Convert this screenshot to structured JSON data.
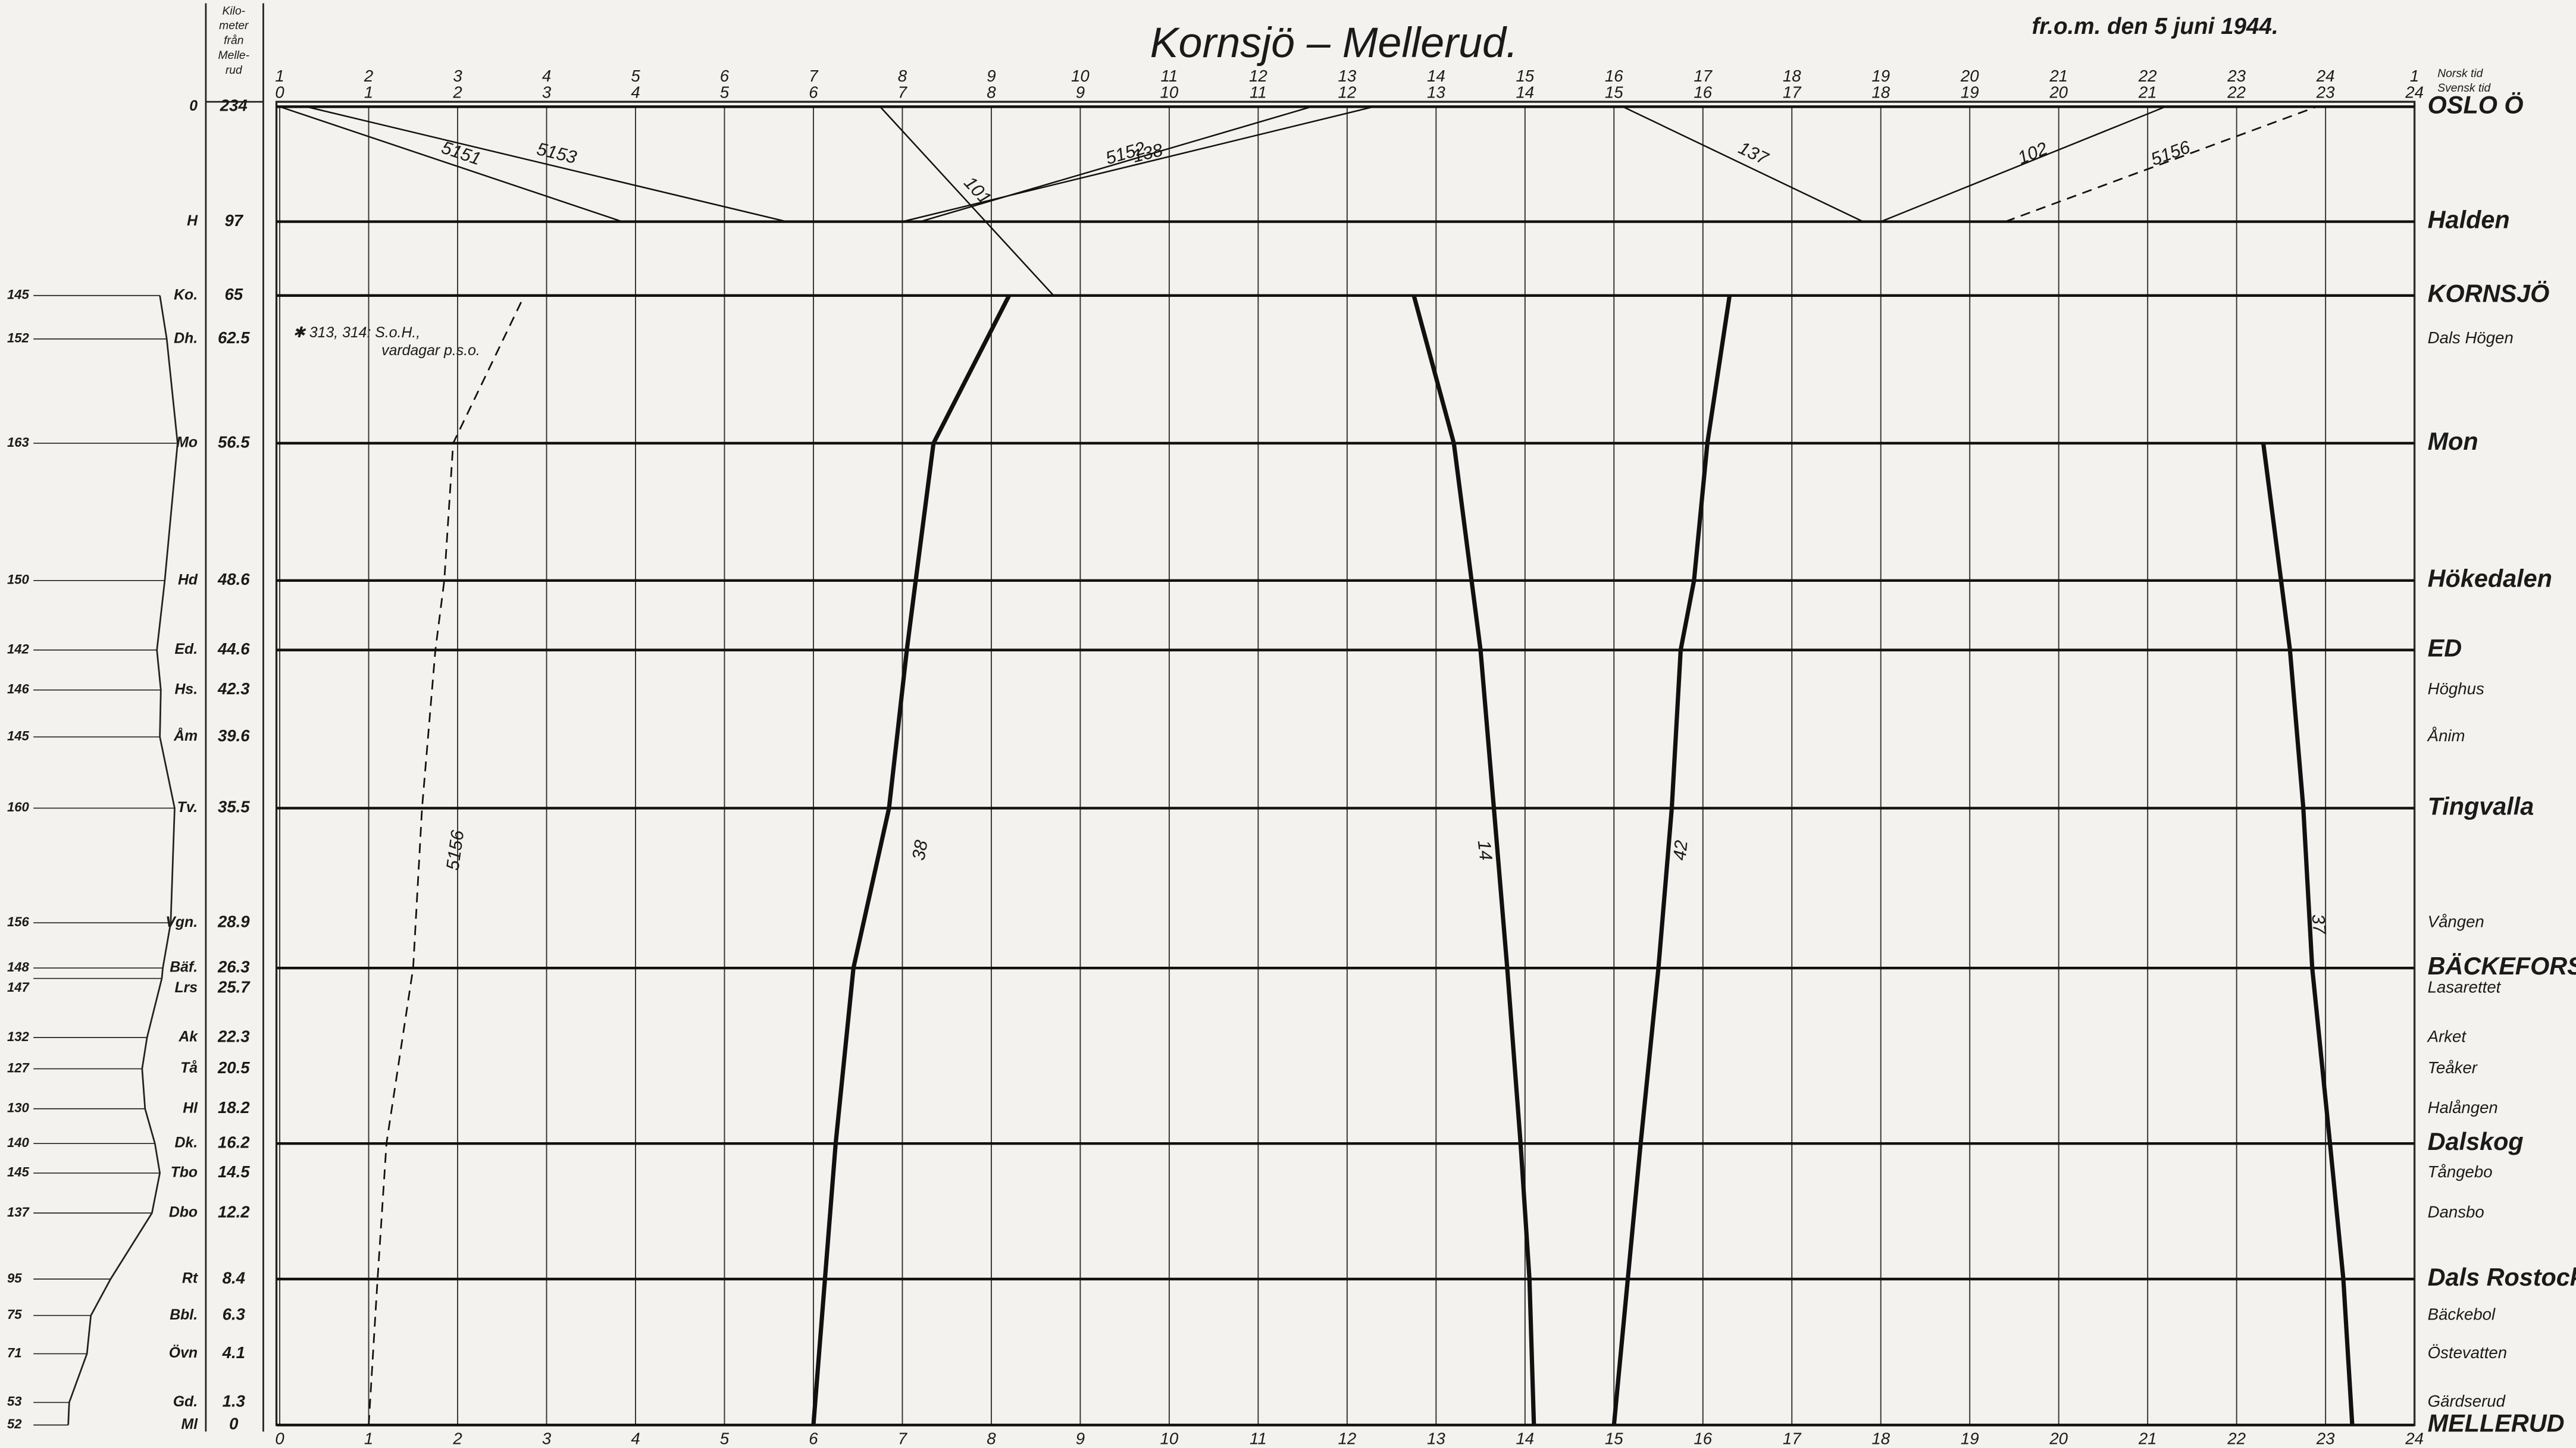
{
  "header": {
    "title": "Kornsjö – Mellerud.",
    "valid_from": "fr.o.m. den 5 juni 1944.",
    "km_column_heading": [
      "Kilo-",
      "meter",
      "från",
      "Melle-",
      "rud"
    ],
    "norsk_label": "Norsk tid",
    "svensk_label": "Svensk tid"
  },
  "note": [
    "✱ 313, 314: S.o.H.,",
    "vardagar p.s.o."
  ],
  "norsk_hours": [
    1,
    2,
    3,
    4,
    5,
    6,
    7,
    8,
    9,
    10,
    11,
    12,
    13,
    14,
    15,
    16,
    17,
    18,
    19,
    20,
    21,
    22,
    23,
    24,
    1
  ],
  "svensk_hours": [
    0,
    1,
    2,
    3,
    4,
    5,
    6,
    7,
    8,
    9,
    10,
    11,
    12,
    13,
    14,
    15,
    16,
    17,
    18,
    19,
    20,
    21,
    22,
    23,
    24
  ],
  "bottom_hours": [
    0,
    1,
    2,
    3,
    4,
    5,
    6,
    7,
    8,
    9,
    10,
    11,
    12,
    13,
    14,
    15,
    16,
    17,
    18,
    19,
    20,
    21,
    22,
    23,
    24
  ],
  "stations": [
    {
      "name": "OSLO Ö",
      "abbr": "0",
      "km": 234,
      "major": true
    },
    {
      "name": "Halden",
      "abbr": "H",
      "km": 97,
      "major": true
    },
    {
      "name": "KORNSJÖ",
      "abbr": "Ko.",
      "km": 65,
      "elevation": 145,
      "major": true
    },
    {
      "name": "Dals Högen",
      "abbr": "Dh.",
      "km": 62.5,
      "elevation": 152,
      "major": false
    },
    {
      "name": "Mon",
      "abbr": "Mo",
      "km": 56.5,
      "elevation": 163,
      "major": true
    },
    {
      "name": "Hökedalen",
      "abbr": "Hd",
      "km": 48.6,
      "elevation": 150,
      "major": true
    },
    {
      "name": "ED",
      "abbr": "Ed.",
      "km": 44.6,
      "elevation": 142,
      "major": true
    },
    {
      "name": "Höghus",
      "abbr": "Hs.",
      "km": 42.3,
      "elevation": 146,
      "major": false
    },
    {
      "name": "Ånim",
      "abbr": "Åm",
      "km": 39.6,
      "elevation": 145,
      "major": false
    },
    {
      "name": "Tingvalla",
      "abbr": "Tv.",
      "km": 35.5,
      "elevation": 160,
      "major": true
    },
    {
      "name": "Vången",
      "abbr": "Vgn.",
      "km": 28.9,
      "elevation": 156,
      "major": false
    },
    {
      "name": "BÄCKEFORS",
      "abbr": "Bäf.",
      "km": 26.3,
      "elevation": 148,
      "major": true
    },
    {
      "name": "Lasarettet",
      "abbr": "Lrs",
      "km": 25.7,
      "elevation": 147,
      "major": false
    },
    {
      "name": "Arket",
      "abbr": "Ak",
      "km": 22.3,
      "elevation": 132,
      "major": false
    },
    {
      "name": "Teåker",
      "abbr": "Tå",
      "km": 20.5,
      "elevation": 127,
      "major": false
    },
    {
      "name": "Halången",
      "abbr": "Hl",
      "km": 18.2,
      "elevation": 130,
      "major": false
    },
    {
      "name": "Dalskog",
      "abbr": "Dk.",
      "km": 16.2,
      "elevation": 140,
      "major": true
    },
    {
      "name": "Tångebo",
      "abbr": "Tbo",
      "km": 14.5,
      "elevation": 145,
      "major": false
    },
    {
      "name": "Dansbo",
      "abbr": "Dbo",
      "km": 12.2,
      "elevation": 137,
      "major": false
    },
    {
      "name": "Dals Rostock",
      "abbr": "Rt",
      "km": 8.4,
      "elevation": 95,
      "major": true
    },
    {
      "name": "Bäckebol",
      "abbr": "Bbl.",
      "km": 6.3,
      "elevation": 75,
      "major": false
    },
    {
      "name": "Östevatten",
      "abbr": "Övn",
      "km": 4.1,
      "elevation": 71,
      "major": false
    },
    {
      "name": "Gärdserud",
      "abbr": "Gd.",
      "km": 1.3,
      "elevation": 53,
      "major": false
    },
    {
      "name": "MELLERUD",
      "abbr": "Ml",
      "km": 0,
      "elevation": 52,
      "major": true
    }
  ],
  "trains": [
    {
      "number": "5151",
      "style": "thin",
      "stops": [
        {
          "station": "OSLO Ö",
          "time": 0.0
        },
        {
          "station": "Halden",
          "time": 3.85
        }
      ]
    },
    {
      "number": "5153",
      "style": "thin",
      "stops": [
        {
          "station": "OSLO Ö",
          "time": 0.3
        },
        {
          "station": "Halden",
          "time": 5.7
        }
      ]
    },
    {
      "number": "5152",
      "style": "thin",
      "stops": [
        {
          "station": "Halden",
          "time": 7.2
        },
        {
          "station": "OSLO Ö",
          "time": 11.6
        }
      ]
    },
    {
      "number": "138",
      "style": "thin",
      "stops": [
        {
          "station": "Halden",
          "time": 7.0
        },
        {
          "station": "OSLO Ö",
          "time": 12.3
        }
      ]
    },
    {
      "number": "101",
      "style": "thin",
      "stops": [
        {
          "station": "OSLO Ö",
          "time": 6.75
        },
        {
          "station": "KORNSJÖ",
          "time": 8.7
        }
      ]
    },
    {
      "number": "137",
      "style": "thin",
      "stops": [
        {
          "station": "OSLO Ö",
          "time": 15.1
        },
        {
          "station": "Halden",
          "time": 17.8
        }
      ]
    },
    {
      "number": "102",
      "style": "thin",
      "stops": [
        {
          "station": "Halden",
          "time": 18.0
        },
        {
          "station": "OSLO Ö",
          "time": 21.2
        }
      ]
    },
    {
      "number": "5156",
      "style": "dashed",
      "stops": [
        {
          "station": "Halden",
          "time": 19.4
        },
        {
          "station": "OSLO Ö",
          "time": 22.9
        }
      ]
    },
    {
      "number": "5156",
      "style": "dashed",
      "stops": [
        {
          "station": "MELLERUD",
          "time": 1.0
        },
        {
          "station": "Dals Rostock",
          "time": 1.1
        },
        {
          "station": "Dalskog",
          "time": 1.2
        },
        {
          "station": "BÄCKEFORS",
          "time": 1.5
        },
        {
          "station": "Tingvalla",
          "time": 1.6
        },
        {
          "station": "ED",
          "time": 1.75
        },
        {
          "station": "Hökedalen",
          "time": 1.85
        },
        {
          "station": "Mon",
          "time": 1.95
        },
        {
          "station": "KORNSJÖ",
          "time": 2.75
        }
      ]
    },
    {
      "number": "38",
      "style": "thick",
      "stops": [
        {
          "station": "MELLERUD",
          "time": 6.0
        },
        {
          "station": "Dalskog",
          "time": 6.25
        },
        {
          "station": "BÄCKEFORS",
          "time": 6.45
        },
        {
          "station": "Tingvalla",
          "time": 6.85
        },
        {
          "station": "ED",
          "time": 7.05
        },
        {
          "station": "Hökedalen",
          "time": 7.15
        },
        {
          "station": "Mon",
          "time": 7.35
        },
        {
          "station": "KORNSJÖ",
          "time": 8.2
        }
      ]
    },
    {
      "number": "14",
      "style": "thick",
      "stops": [
        {
          "station": "KORNSJÖ",
          "time": 12.75
        },
        {
          "station": "Mon",
          "time": 13.2
        },
        {
          "station": "ED",
          "time": 13.5
        },
        {
          "station": "Tingvalla",
          "time": 13.65
        },
        {
          "station": "BÄCKEFORS",
          "time": 13.8
        },
        {
          "station": "Dalskog",
          "time": 13.95
        },
        {
          "station": "Dals Rostock",
          "time": 14.05
        },
        {
          "station": "MELLERUD",
          "time": 14.1
        }
      ]
    },
    {
      "number": "42",
      "style": "thick",
      "stops": [
        {
          "station": "MELLERUD",
          "time": 15.0
        },
        {
          "station": "Dalskog",
          "time": 15.3
        },
        {
          "station": "BÄCKEFORS",
          "time": 15.5
        },
        {
          "station": "Tingvalla",
          "time": 15.65
        },
        {
          "station": "ED",
          "time": 15.75
        },
        {
          "station": "Hökedalen",
          "time": 15.9
        },
        {
          "station": "Mon",
          "time": 16.05
        },
        {
          "station": "KORNSJÖ",
          "time": 16.3
        }
      ]
    },
    {
      "number": "37",
      "style": "thick",
      "stops": [
        {
          "station": "Mon",
          "time": 22.3
        },
        {
          "station": "Hökedalen",
          "time": 22.5
        },
        {
          "station": "ED",
          "time": 22.6
        },
        {
          "station": "Tingvalla",
          "time": 22.75
        },
        {
          "station": "BÄCKEFORS",
          "time": 22.85
        },
        {
          "station": "Dalskog",
          "time": 23.05
        },
        {
          "station": "Dals Rostock",
          "time": 23.2
        },
        {
          "station": "MELLERUD",
          "time": 23.3
        }
      ]
    }
  ]
}
